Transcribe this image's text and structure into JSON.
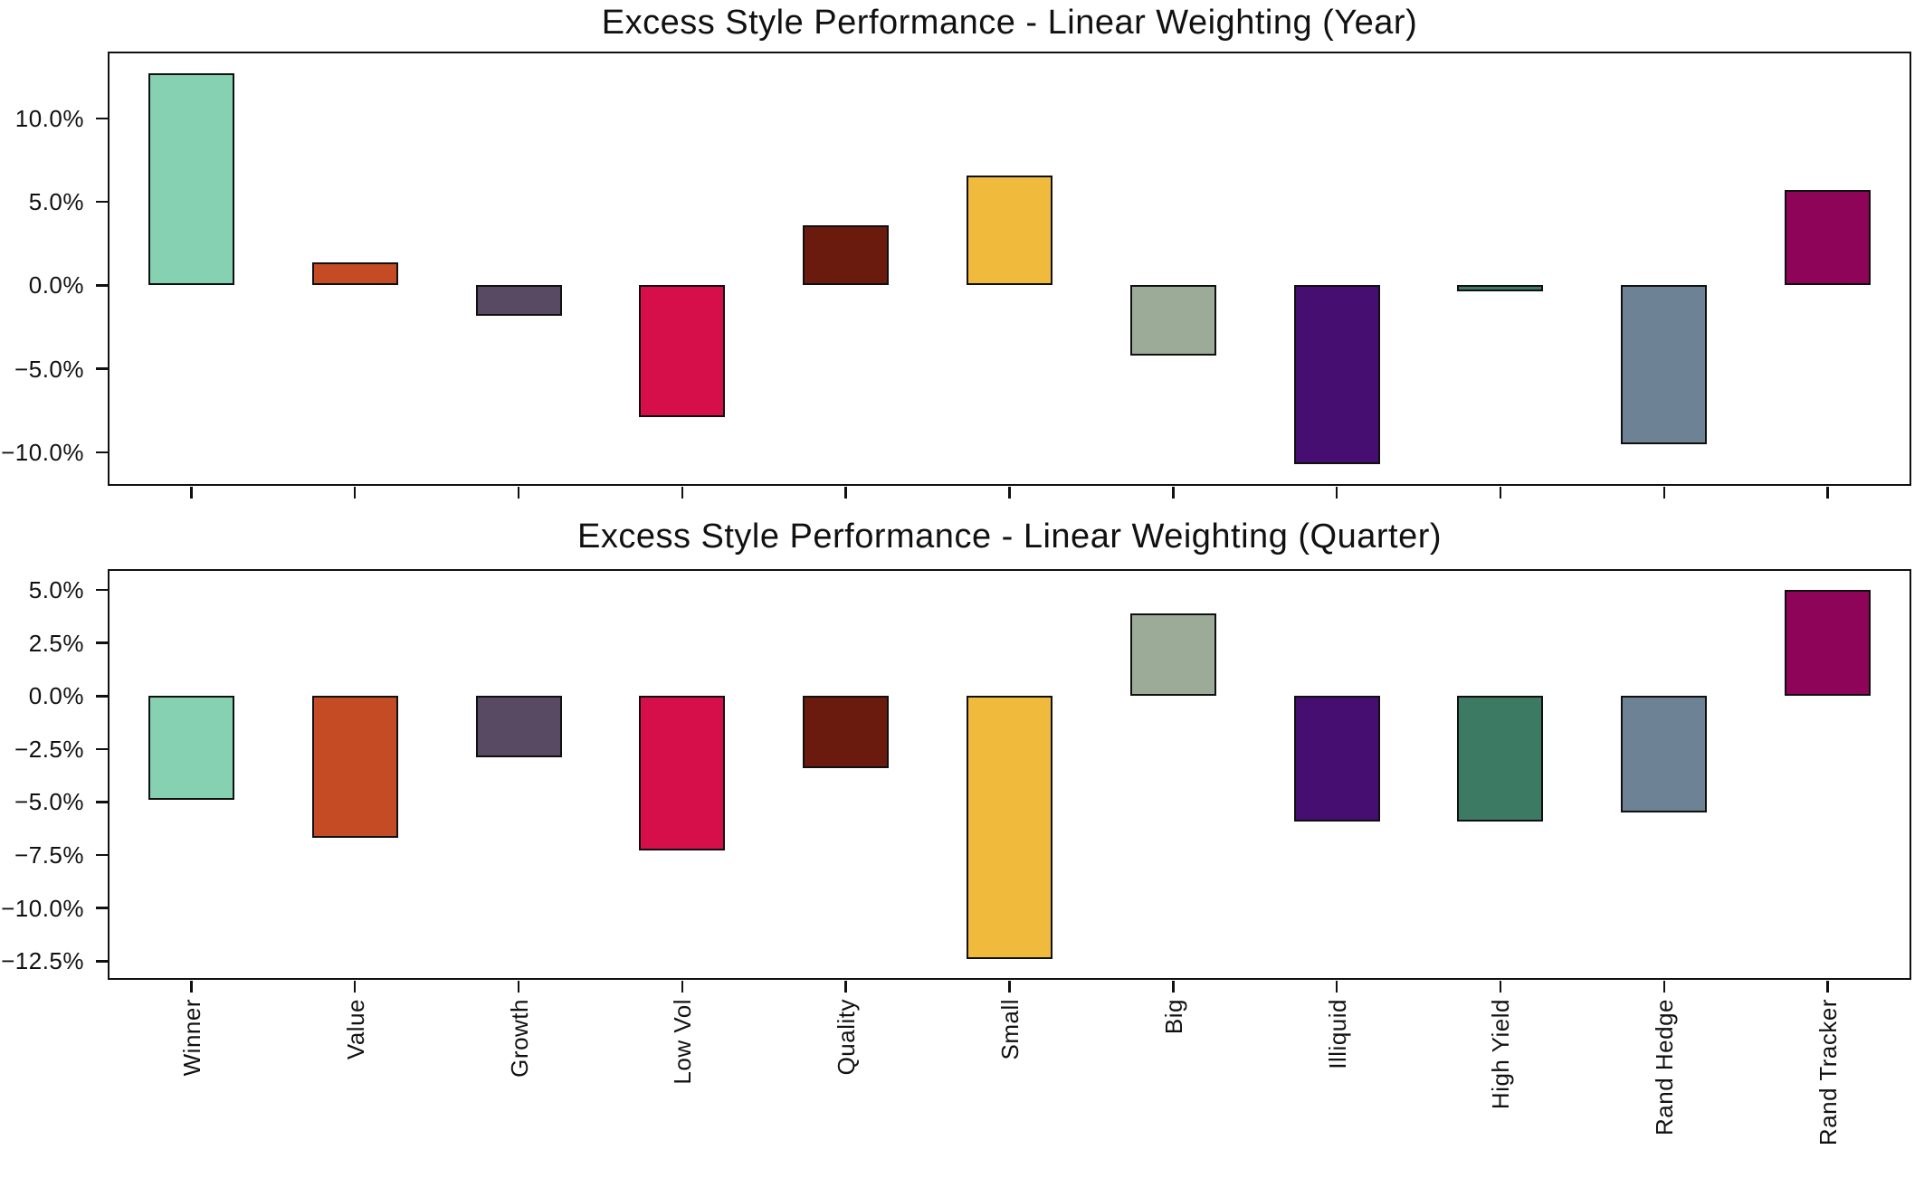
{
  "figure": {
    "background": "#ffffff",
    "text_color": "#111111",
    "bar_edge_color": "#101010",
    "categories": [
      "Winner",
      "Value",
      "Growth",
      "Low Vol",
      "Quality",
      "Small",
      "Big",
      "Illiquid",
      "High Yield",
      "Rand Hedge",
      "Rand Tracker"
    ],
    "bar_colors": [
      "#85d1b2",
      "#c44b24",
      "#584a62",
      "#d60e49",
      "#6b1a0e",
      "#f0ba3d",
      "#9cab98",
      "#450e70",
      "#3d7a64",
      "#6e8296",
      "#8e0459"
    ]
  },
  "chart_data": [
    {
      "type": "bar",
      "title": "Excess Style Performance - Linear Weighting (Year)",
      "categories": [
        "Winner",
        "Value",
        "Growth",
        "Low Vol",
        "Quality",
        "Small",
        "Big",
        "Illiquid",
        "High Yield",
        "Rand Hedge",
        "Rand Tracker"
      ],
      "values": [
        12.7,
        1.4,
        -1.8,
        -7.9,
        3.6,
        6.6,
        -4.2,
        -10.7,
        -0.2,
        -9.5,
        5.7
      ],
      "unit": "%",
      "xlabel": "",
      "ylabel": "",
      "ylim": [
        -11.9,
        13.9
      ],
      "yticks": [
        10,
        5,
        0,
        -5,
        -10
      ],
      "ytick_labels": [
        "10.0%",
        "5.0%",
        "0.0%",
        "−5.0%",
        "−10.0%"
      ],
      "x_tick_labels_visible": false,
      "grid": false,
      "legend": "none"
    },
    {
      "type": "bar",
      "title": "Excess Style Performance - Linear Weighting (Quarter)",
      "categories": [
        "Winner",
        "Value",
        "Growth",
        "Low Vol",
        "Quality",
        "Small",
        "Big",
        "Illiquid",
        "High Yield",
        "Rand Hedge",
        "Rand Tracker"
      ],
      "values": [
        -4.9,
        -6.7,
        -2.9,
        -7.3,
        -3.4,
        -12.4,
        3.9,
        -5.9,
        -5.9,
        -5.5,
        5.0
      ],
      "unit": "%",
      "xlabel": "",
      "ylabel": "",
      "ylim": [
        -13.3,
        5.9
      ],
      "yticks": [
        5,
        2.5,
        0,
        -2.5,
        -5,
        -7.5,
        -10,
        -12.5
      ],
      "ytick_labels": [
        "5.0%",
        "2.5%",
        "0.0%",
        "−2.5%",
        "−5.0%",
        "−7.5%",
        "−10.0%",
        "−12.5%"
      ],
      "x_tick_labels_visible": true,
      "grid": false,
      "legend": "none"
    }
  ]
}
